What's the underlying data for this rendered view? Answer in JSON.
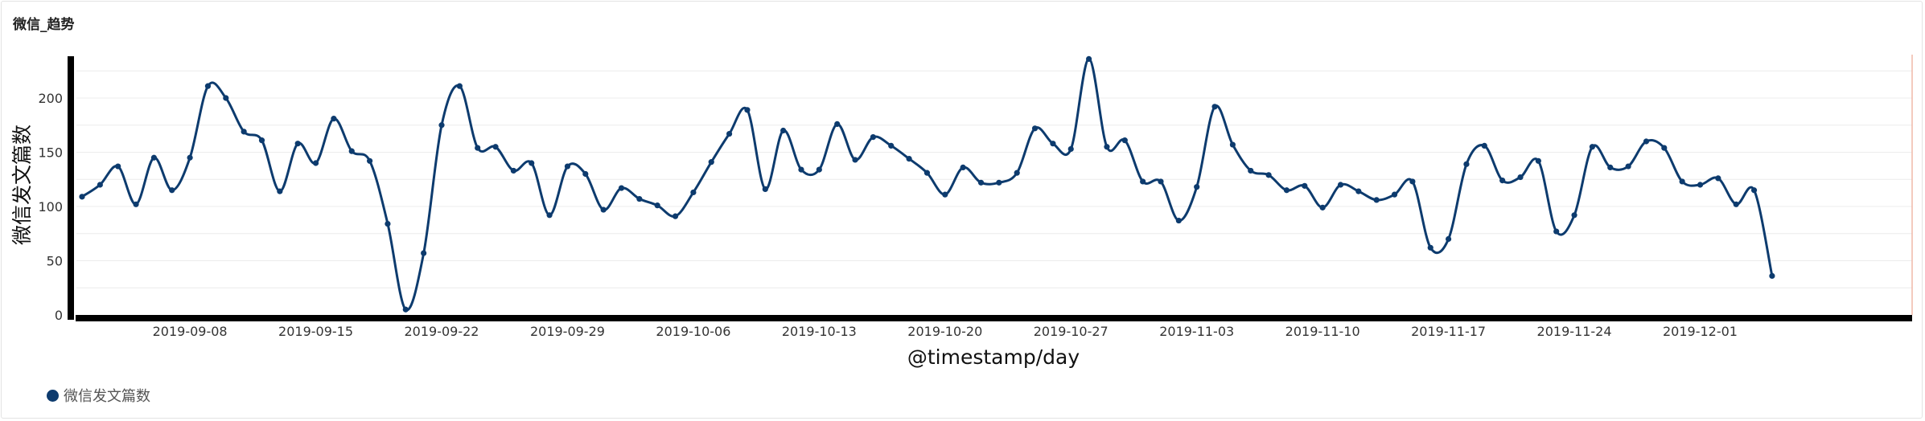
{
  "panel": {
    "title": "微信_趋势"
  },
  "chart_data": {
    "type": "line",
    "title": "微信_趋势",
    "xlabel": "@timestamp/day",
    "ylabel": "微信发文篇数",
    "ylim": [
      0,
      240
    ],
    "y_ticks": [
      0,
      50,
      100,
      150,
      200
    ],
    "x_tick_labels": [
      "2019-09-08",
      "2019-09-15",
      "2019-09-22",
      "2019-09-29",
      "2019-10-06",
      "2019-10-13",
      "2019-10-20",
      "2019-10-27",
      "2019-11-03",
      "2019-11-10",
      "2019-11-17",
      "2019-11-24",
      "2019-12-01"
    ],
    "x_tick_start_index": 6,
    "x_tick_step": 7,
    "grid": true,
    "legend": "bottom-left",
    "series": [
      {
        "name": "微信发文篇数",
        "color": "#0d3b6e",
        "values": [
          109,
          120,
          137,
          102,
          145,
          115,
          145,
          211,
          200,
          169,
          161,
          114,
          158,
          140,
          181,
          151,
          142,
          84,
          5,
          57,
          175,
          211,
          154,
          155,
          133,
          140,
          92,
          137,
          130,
          97,
          117,
          107,
          101,
          91,
          113,
          141,
          167,
          189,
          116,
          170,
          134,
          134,
          176,
          143,
          164,
          156,
          144,
          131,
          111,
          136,
          122,
          122,
          131,
          172,
          158,
          153,
          236,
          155,
          161,
          123,
          123,
          87,
          118,
          192,
          157,
          133,
          129,
          115,
          119,
          99,
          120,
          114,
          106,
          111,
          123,
          62,
          70,
          139,
          156,
          124,
          127,
          142,
          77,
          92,
          155,
          136,
          137,
          160,
          154,
          123,
          120,
          126,
          102,
          115,
          36
        ]
      }
    ]
  },
  "legend_items": [
    {
      "label": "微信发文篇数",
      "color": "#0d3b6e"
    }
  ]
}
